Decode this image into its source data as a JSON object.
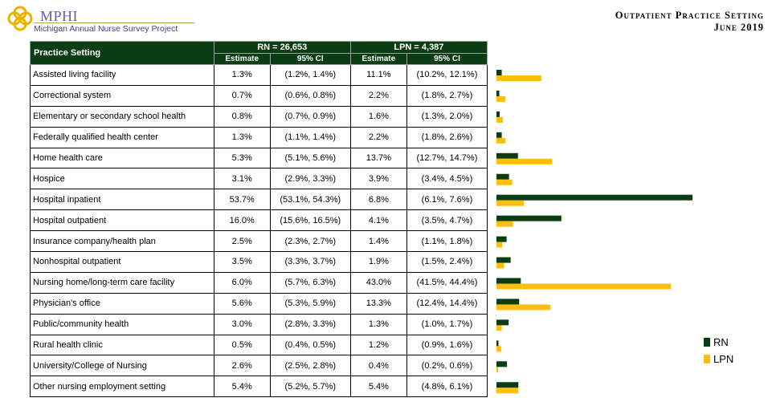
{
  "logo": {
    "name": "MPHI",
    "subtitle": "Michigan Annual Nurse Survey Project"
  },
  "header": {
    "title": "Outpatient Practice Setting",
    "date": "June 2019"
  },
  "table": {
    "setting_header": "Practice Setting",
    "rn_header": "RN = 26,653",
    "lpn_header": "LPN = 4,387",
    "estimate_label": "Estimate",
    "ci_label": "95% CI"
  },
  "colors": {
    "rn": "#0b3d14",
    "lpn": "#fcbf10"
  },
  "chart_data": {
    "type": "bar",
    "orientation": "horizontal",
    "categories": [
      "Assisted living facility",
      "Correctional system",
      "Elementary or secondary school health",
      "Federally qualified health center",
      "Home health care",
      "Hospice",
      "Hospital inpatient",
      "Hospital outpatient",
      "Insurance company/health plan",
      "Nonhospital outpatient",
      "Nursing home/long-term care facility",
      "Physician's office",
      "Public/community health",
      "Rural health clinic",
      "University/College of Nursing",
      "Other nursing employment setting"
    ],
    "series": [
      {
        "name": "RN",
        "values": [
          1.3,
          0.7,
          0.8,
          1.3,
          5.3,
          3.1,
          53.7,
          16.0,
          2.5,
          3.5,
          6.0,
          5.6,
          3.0,
          0.5,
          2.6,
          5.4
        ],
        "labels": [
          "1.3%",
          "0.7%",
          "0.8%",
          "1.3%",
          "5.3%",
          "3.1%",
          "53.7%",
          "16.0%",
          "2.5%",
          "3.5%",
          "6.0%",
          "5.6%",
          "3.0%",
          "0.5%",
          "2.6%",
          "5.4%"
        ],
        "ci": [
          "(1.2%, 1.4%)",
          "(0.6%, 0.8%)",
          "(0.7%, 0.9%)",
          "(1.1%, 1.4%)",
          "(5.1%, 5.6%)",
          "(2.9%, 3.3%)",
          "(53.1%, 54.3%)",
          "(15.6%, 16.5%)",
          "(2.3%, 2.7%)",
          "(3.3%, 3.7%)",
          "(5.7%, 6.3%)",
          "(5.3%, 5.9%)",
          "(2.8%, 3.3%)",
          "(0.4%, 0.5%)",
          "(2.5%, 2.8%)",
          "(5.2%, 5.7%)"
        ]
      },
      {
        "name": "LPN",
        "values": [
          11.1,
          2.2,
          1.6,
          2.2,
          13.7,
          3.9,
          6.8,
          4.1,
          1.4,
          1.9,
          43.0,
          13.3,
          1.3,
          1.2,
          0.4,
          5.4
        ],
        "labels": [
          "11.1%",
          "2.2%",
          "1.6%",
          "2.2%",
          "13.7%",
          "3.9%",
          "6.8%",
          "4.1%",
          "1.4%",
          "1.9%",
          "43.0%",
          "13.3%",
          "1.3%",
          "1.2%",
          "0.4%",
          "5.4%"
        ],
        "ci": [
          "(10.2%, 12.1%)",
          "(1.8%, 2.7%)",
          "(1.3%, 2.0%)",
          "(1.8%, 2.6%)",
          "(12.7%, 14.7%)",
          "(3.4%, 4.5%)",
          "(6.1%, 7.6%)",
          "(3.5%, 4.7%)",
          "(1.1%, 1.8%)",
          "(1.5%, 2.4%)",
          "(41.5%, 44.4%)",
          "(12.4%, 14.4%)",
          "(1.0%, 1.7%)",
          "(0.9%, 1.6%)",
          "(0.2%, 0.6%)",
          "(4.8%, 6.1%)"
        ]
      }
    ],
    "xlim": [
      0,
      54
    ],
    "legend": "bottom-right",
    "grid": false
  }
}
